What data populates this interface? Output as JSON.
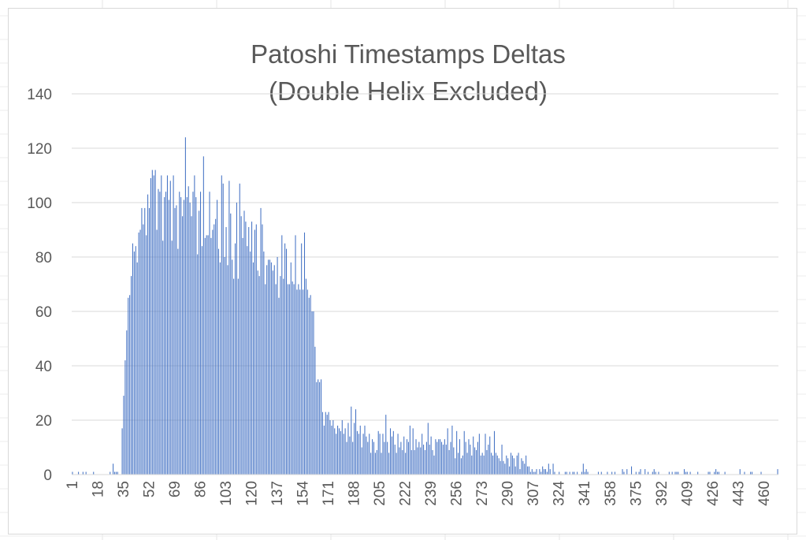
{
  "chart_data": {
    "type": "bar",
    "title": [
      "Patoshi Timestamps Deltas",
      "(Double Helix Excluded)"
    ],
    "xlabel": "",
    "ylabel": "",
    "ylim": [
      0,
      140
    ],
    "y_ticks": [
      0,
      20,
      40,
      60,
      80,
      100,
      120,
      140
    ],
    "x_tick_labels": [
      "1",
      "18",
      "35",
      "52",
      "69",
      "86",
      "103",
      "120",
      "137",
      "154",
      "171",
      "188",
      "205",
      "222",
      "239",
      "256",
      "273",
      "290",
      "307",
      "324",
      "341",
      "358",
      "375",
      "392",
      "409",
      "426",
      "443",
      "460"
    ],
    "grid": true,
    "legend": "none",
    "bar_color": "#4472c4",
    "x_start": 1,
    "values": [
      1,
      0,
      0,
      0,
      1,
      0,
      0,
      1,
      0,
      1,
      0,
      0,
      0,
      0,
      1,
      0,
      0,
      0,
      0,
      0,
      0,
      0,
      0,
      0,
      0,
      1,
      0,
      4,
      1,
      1,
      1,
      0,
      0,
      17,
      29,
      42,
      53,
      65,
      66,
      73,
      85,
      82,
      84,
      78,
      89,
      90,
      98,
      92,
      98,
      88,
      103,
      98,
      109,
      112,
      110,
      112,
      90,
      105,
      104,
      110,
      86,
      102,
      104,
      110,
      101,
      108,
      86,
      110,
      98,
      99,
      83,
      104,
      102,
      95,
      101,
      124,
      102,
      106,
      100,
      95,
      104,
      110,
      102,
      81,
      97,
      104,
      84,
      117,
      87,
      88,
      88,
      104,
      87,
      90,
      92,
      94,
      101,
      83,
      78,
      110,
      107,
      80,
      91,
      77,
      108,
      96,
      79,
      72,
      85,
      100,
      72,
      107,
      95,
      87,
      97,
      93,
      84,
      91,
      82,
      93,
      78,
      90,
      92,
      75,
      73,
      98,
      92,
      82,
      70,
      77,
      79,
      79,
      78,
      75,
      77,
      70,
      80,
      65,
      73,
      88,
      72,
      85,
      83,
      70,
      70,
      78,
      71,
      70,
      88,
      68,
      70,
      68,
      85,
      68,
      89,
      72,
      68,
      65,
      66,
      60,
      60,
      47,
      34,
      35,
      34,
      35,
      23,
      18,
      23,
      22,
      23,
      20,
      18,
      20,
      17,
      15,
      18,
      17,
      16,
      20,
      15,
      17,
      12,
      19,
      14,
      25,
      12,
      19,
      24,
      16,
      15,
      18,
      10,
      15,
      18,
      14,
      12,
      15,
      8,
      13,
      12,
      8,
      9,
      16,
      15,
      8,
      15,
      12,
      22,
      12,
      8,
      17,
      14,
      16,
      11,
      8,
      15,
      10,
      12,
      9,
      14,
      8,
      13,
      12,
      18,
      9,
      17,
      9,
      13,
      10,
      12,
      10,
      15,
      11,
      9,
      12,
      19,
      11,
      14,
      9,
      7,
      13,
      12,
      13,
      13,
      12,
      11,
      13,
      11,
      17,
      9,
      12,
      18,
      10,
      6,
      16,
      8,
      13,
      6,
      7,
      16,
      12,
      8,
      13,
      11,
      7,
      14,
      10,
      9,
      12,
      15,
      7,
      8,
      7,
      15,
      9,
      11,
      14,
      8,
      7,
      16,
      8,
      7,
      6,
      5,
      11,
      5,
      4,
      7,
      6,
      3,
      8,
      7,
      6,
      3,
      7,
      8,
      2,
      6,
      5,
      4,
      7,
      3,
      3,
      1,
      2,
      1,
      1,
      2,
      0,
      2,
      1,
      3,
      2,
      2,
      1,
      4,
      2,
      0,
      4,
      1,
      0,
      0,
      1,
      0,
      0,
      0,
      1,
      1,
      0,
      1,
      0,
      1,
      1,
      0,
      1,
      0,
      0,
      1,
      4,
      1,
      2,
      1,
      0,
      0,
      0,
      0,
      0,
      0,
      1,
      0,
      1,
      0,
      0,
      0,
      1,
      0,
      0,
      1,
      0,
      1,
      0,
      0,
      0,
      0,
      2,
      1,
      0,
      2,
      0,
      0,
      3,
      0,
      0,
      1,
      0,
      1,
      2,
      0,
      0,
      2,
      0,
      1,
      0,
      0,
      1,
      2,
      1,
      0,
      1,
      0,
      0,
      0,
      0,
      0,
      0,
      1,
      0,
      1,
      0,
      1,
      1,
      1,
      0,
      0,
      0,
      2,
      1,
      1,
      0,
      1,
      0,
      0,
      0,
      0,
      1,
      0,
      0,
      0,
      0,
      0,
      0,
      1,
      1,
      0,
      0,
      1,
      2,
      1,
      1,
      0,
      0,
      0,
      1,
      0,
      0,
      0,
      0,
      0,
      0,
      0,
      0,
      0,
      2,
      0,
      0,
      1,
      0,
      0,
      0,
      1,
      1,
      0,
      0,
      0,
      0,
      0,
      1,
      0,
      0,
      0,
      0,
      0,
      0,
      0,
      0,
      0,
      0,
      2
    ]
  }
}
